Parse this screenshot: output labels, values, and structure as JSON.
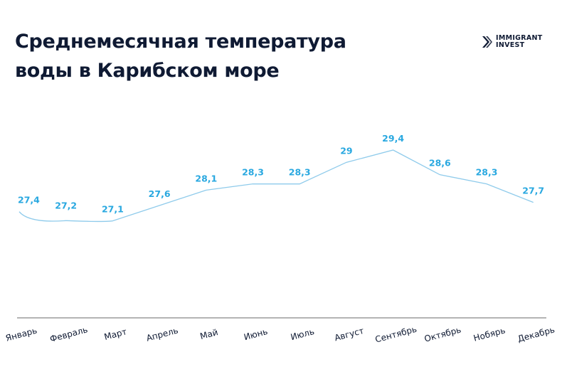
{
  "header": {
    "title_line1": "Среднемесячная температура",
    "title_line2": "воды в Карибском море",
    "logo_line1": "IMMIGRANT",
    "logo_line2": "INVEST"
  },
  "colors": {
    "line": "#8fcbeb",
    "value_label": "#29a8e0",
    "title": "#0f1a33",
    "axis": "#888888"
  },
  "icons": {
    "logo": "immigrant-invest-logo-icon"
  },
  "chart_data": {
    "type": "line",
    "title": "Среднемесячная температура воды в Карибском море",
    "categories": [
      "Январь",
      "Февраль",
      "Март",
      "Апрель",
      "Май",
      "Июнь",
      "Июль",
      "Август",
      "Сентябрь",
      "Октябрь",
      "Нобярь",
      "Декабрь"
    ],
    "values": [
      27.4,
      27.2,
      27.1,
      27.6,
      28.1,
      28.3,
      28.3,
      29,
      29.4,
      28.6,
      28.3,
      27.7
    ],
    "value_labels": [
      "27,4",
      "27,2",
      "27,1",
      "27,6",
      "28,1",
      "28,3",
      "28,3",
      "29",
      "29,4",
      "28,6",
      "28,3",
      "27,7"
    ],
    "xlabel": "",
    "ylabel": "",
    "grid": false,
    "legend": "none"
  }
}
